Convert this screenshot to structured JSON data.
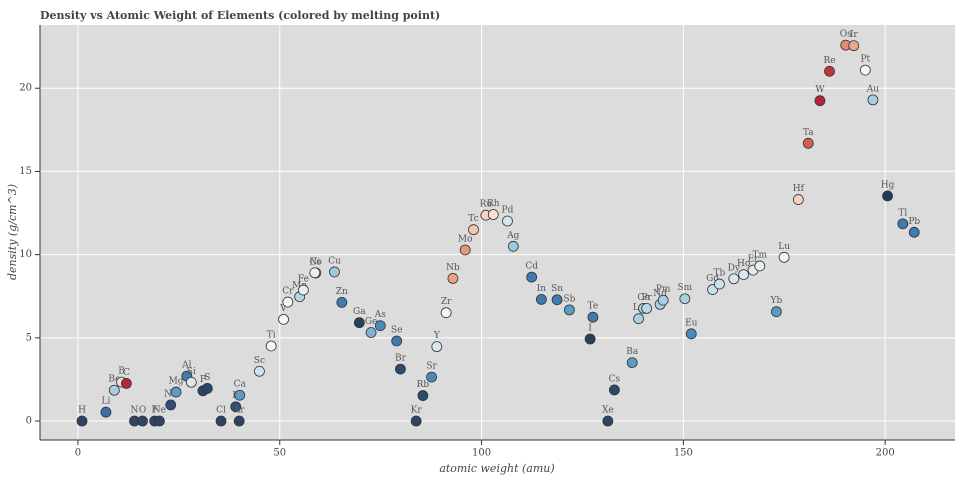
{
  "chart_data": {
    "type": "scatter",
    "title": "Density vs Atomic Weight of Elements (colored by melting point)",
    "x_label": "atomic weight (amu)",
    "y_label": "density (g/cm^3)",
    "labels": [
      "H",
      "Li",
      "Be",
      "B",
      "C",
      "N",
      "O",
      "F",
      "Ne",
      "Na",
      "Mg",
      "Al",
      "Si",
      "P",
      "S",
      "Cl",
      "K",
      "Ar",
      "Ca",
      "Sc",
      "Ti",
      "V",
      "Cr",
      "Mn",
      "Fe",
      "Co",
      "Ni",
      "Cu",
      "Zn",
      "Ga",
      "Ge",
      "As",
      "Se",
      "Br",
      "Kr",
      "Rb",
      "Sr",
      "Y",
      "Zr",
      "Nb",
      "Mo",
      "Tc",
      "Ru",
      "Rh",
      "Pd",
      "Ag",
      "Cd",
      "In",
      "Sn",
      "Sb",
      "Te",
      "I",
      "Xe",
      "Cs",
      "Ba",
      "La",
      "Ce",
      "Pr",
      "Nd",
      "Pm",
      "Sm",
      "Eu",
      "Gd",
      "Tb",
      "Dy",
      "Ho",
      "Er",
      "Tm",
      "Yb",
      "Lu",
      "Hf",
      "Ta",
      "W",
      "Re",
      "Os",
      "Ir",
      "Pt",
      "Au",
      "Hg",
      "Tl",
      "Pb"
    ],
    "x": [
      1.008,
      6.94,
      9.01,
      10.81,
      12.01,
      14.01,
      16.0,
      19.0,
      20.18,
      22.99,
      24.31,
      26.98,
      28.09,
      30.97,
      32.06,
      35.45,
      39.1,
      39.95,
      40.08,
      44.96,
      47.87,
      50.94,
      52.0,
      54.94,
      55.85,
      58.93,
      58.69,
      63.55,
      65.38,
      69.72,
      72.63,
      74.92,
      78.97,
      79.9,
      83.8,
      85.47,
      87.62,
      88.91,
      91.22,
      92.91,
      95.95,
      98,
      101.07,
      102.91,
      106.42,
      107.87,
      112.41,
      114.82,
      118.71,
      121.76,
      127.6,
      126.9,
      131.29,
      132.91,
      137.33,
      138.91,
      140.12,
      140.91,
      144.24,
      145,
      150.36,
      151.96,
      157.25,
      158.93,
      162.5,
      164.93,
      167.26,
      168.93,
      173.05,
      174.97,
      178.49,
      180.95,
      183.84,
      186.21,
      190.23,
      192.22,
      195.08,
      196.97,
      200.59,
      204.38,
      207.2
    ],
    "values": [
      0,
      0.53,
      1.85,
      2.34,
      2.26,
      0,
      0,
      0,
      0,
      0.97,
      1.74,
      2.7,
      2.33,
      1.82,
      1.96,
      0,
      0.86,
      0,
      1.55,
      2.99,
      4.51,
      6.11,
      7.15,
      7.47,
      7.87,
      8.9,
      8.91,
      8.96,
      7.13,
      5.91,
      5.32,
      5.73,
      4.81,
      3.12,
      0,
      1.53,
      2.64,
      4.47,
      6.51,
      8.57,
      10.28,
      11.5,
      12.37,
      12.41,
      12.02,
      10.5,
      8.65,
      7.31,
      7.29,
      6.68,
      6.24,
      4.93,
      0,
      1.87,
      3.51,
      6.15,
      6.77,
      6.77,
      7.01,
      7.26,
      7.35,
      5.24,
      7.9,
      8.23,
      8.55,
      8.8,
      9.07,
      9.32,
      6.57,
      9.84,
      13.31,
      16.69,
      19.25,
      21.02,
      22.59,
      22.56,
      21.09,
      19.3,
      13.53,
      11.85,
      11.34
    ],
    "colors": [
      "#2d4464",
      "#3c6ea6",
      "#a9cfe3",
      "#f2ddd0",
      "#b3263c",
      "#2d4464",
      "#2d4464",
      "#2d4464",
      "#2d4464",
      "#2f4d76",
      "#5a9bc7",
      "#3f7ab2",
      "#d8e6ee",
      "#2d4464",
      "#28466e",
      "#2d4464",
      "#2f4d76",
      "#2d4464",
      "#5a9bc7",
      "#cfe2ec",
      "#f5f5f5",
      "#f7f5f2",
      "#f5f5f5",
      "#b7d7e8",
      "#e7eef2",
      "#f0f0f0",
      "#ecf0f3",
      "#9ec8e0",
      "#3f7ab2",
      "#24425f",
      "#7fb2d5",
      "#4a8bbd",
      "#3f7ab2",
      "#2a4a70",
      "#2d4464",
      "#2a4a70",
      "#4a8bbd",
      "#d8e6ee",
      "#f5f5f5",
      "#e9a487",
      "#e9957a",
      "#f5c6a8",
      "#f6d3bd",
      "#f7e0d0",
      "#d8e6ee",
      "#9ec8e0",
      "#3f7ab2",
      "#3f7ab2",
      "#3f7ab2",
      "#5a9bc7",
      "#3f7ab2",
      "#24425f",
      "#2d4464",
      "#2a4a70",
      "#5a9bc7",
      "#a9cfe3",
      "#a9cfe3",
      "#b7d7e8",
      "#a9cfe3",
      "#a9cfe3",
      "#a9cfe3",
      "#4a8bbd",
      "#c5dfec",
      "#cfe2ec",
      "#d8e6ee",
      "#d8e6ee",
      "#e0ebf1",
      "#e7eef2",
      "#5a9bc7",
      "#f5f5f5",
      "#f6d3bd",
      "#d1604f",
      "#b2263a",
      "#c0363f",
      "#e18a74",
      "#eba889",
      "#f7f7f7",
      "#a9cfe3",
      "#1f3a5f",
      "#3f7ab2",
      "#3f7ab2"
    ],
    "xlim": [
      -9.4,
      217.3
    ],
    "ylim": [
      -1.14,
      23.8
    ],
    "xticks": [
      0,
      50,
      100,
      150,
      200
    ],
    "yticks": [
      0,
      5,
      10,
      15,
      20
    ],
    "grid": true
  }
}
